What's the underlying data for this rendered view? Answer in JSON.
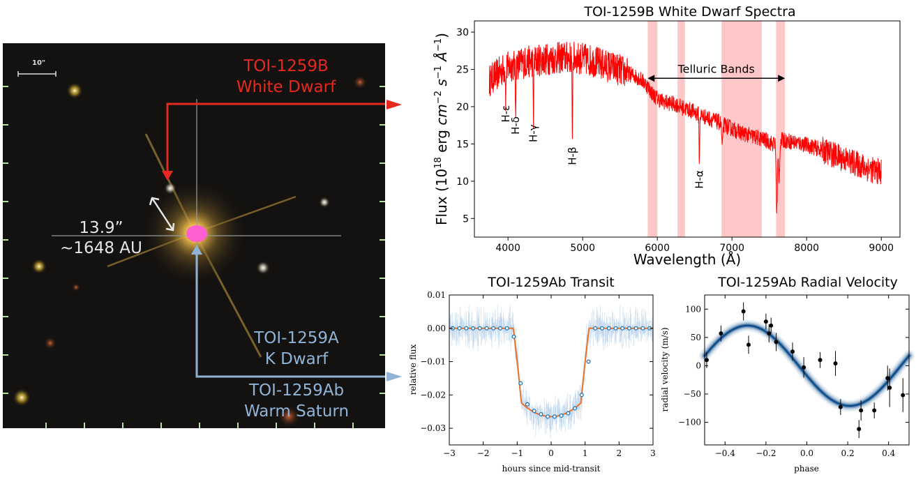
{
  "image_panel": {
    "scale_bar_label": "10\"",
    "wd_name": "TOI-1259B",
    "wd_type": "White Dwarf",
    "k_name": "TOI-1259A",
    "k_type": "K Dwarf",
    "planet_name": "TOI-1259Ab",
    "planet_type": "Warm Saturn",
    "sep_arcsec": "13.9”",
    "sep_au": "~1648 AU",
    "colors": {
      "white_dwarf": "#e8281e",
      "k_dwarf": "#8fb4d8",
      "sky": "#141210"
    }
  },
  "chart_data": [
    {
      "type": "line",
      "title": "TOI-1259B White Dwarf Spectra",
      "xlabel": "Wavelength (Å)",
      "ylabel_parts": [
        "Flux (10",
        "18",
        " erg ",
        "cm",
        "−2",
        " s",
        "−1",
        " Å",
        "−1",
        ")"
      ],
      "xlim": [
        3550,
        9250
      ],
      "ylim": [
        2.5,
        31.5
      ],
      "xticks": [
        "4000",
        "5000",
        "6000",
        "7000",
        "8000",
        "9000"
      ],
      "yticks": [
        "5",
        "10",
        "15",
        "20",
        "25",
        "30"
      ],
      "color": "#ff0000",
      "series": [
        {
          "x": [
            3750,
            3850,
            3950,
            4050,
            4150,
            4250,
            4350,
            4450,
            4550,
            4650,
            4750,
            4850,
            4950,
            5050,
            5150,
            5250,
            5350,
            5450,
            5550,
            5650,
            5750,
            5850,
            5950,
            6050,
            6150,
            6250,
            6350,
            6450,
            6550,
            6650,
            6750,
            6850,
            6950,
            7050,
            7150,
            7250,
            7350,
            7450,
            7550,
            7650,
            7750,
            7850,
            7950,
            8050,
            8150,
            8250,
            8350,
            8450,
            8550,
            8650,
            8750,
            8850,
            8950,
            9000
          ],
          "y": [
            23.5,
            24.3,
            25.1,
            25.5,
            25.8,
            26.0,
            26.1,
            26.3,
            26.4,
            26.5,
            26.6,
            26.6,
            26.5,
            26.3,
            26.1,
            25.7,
            25.4,
            25.1,
            24.7,
            24.3,
            23.9,
            23.0,
            21.5,
            20.8,
            20.5,
            20.3,
            19.8,
            19.5,
            19.0,
            18.6,
            18.2,
            17.8,
            17.3,
            16.8,
            16.4,
            16.1,
            15.8,
            15.5,
            15.0,
            15.5,
            15.4,
            15.2,
            15.0,
            14.7,
            14.4,
            14.0,
            13.6,
            13.2,
            12.8,
            12.4,
            12.0,
            11.6,
            11.3,
            11.2
          ]
        }
      ],
      "absorption_lines": [
        {
          "label": "H-ε",
          "x": 3970,
          "depth": 4.0
        },
        {
          "label": "H-δ",
          "x": 4102,
          "depth": 6.0
        },
        {
          "label": "H-γ",
          "x": 4341,
          "depth": 7.5
        },
        {
          "label": "H-β",
          "x": 4861,
          "depth": 11.0
        },
        {
          "label": "H-α",
          "x": 6563,
          "depth": 6.5
        }
      ],
      "telluric_bands": [
        [
          5870,
          6000
        ],
        [
          6270,
          6370
        ],
        [
          6860,
          7400
        ],
        [
          7590,
          7710
        ]
      ],
      "telluric_label": "Telluric Bands",
      "telluric_arrow": [
        5870,
        7710
      ],
      "band_color": "#ffc8c8"
    },
    {
      "type": "line",
      "title": "TOI-1259Ab Transit",
      "xlabel": "hours since mid-transit",
      "ylabel": "relative flux",
      "xlim": [
        -3,
        3
      ],
      "ylim": [
        -0.035,
        0.01
      ],
      "xticks": [
        "−3",
        "−2",
        "−1",
        "0",
        "1",
        "2",
        "3"
      ],
      "yticks": [
        "0.01",
        "0.00",
        "−0.01",
        "−0.02",
        "−0.03"
      ],
      "model": {
        "depth": 0.0265,
        "t14": 2.23,
        "ingress": 0.24,
        "color": "#e8712a"
      },
      "binned_points": {
        "x": [
          -2.9,
          -2.7,
          -2.5,
          -2.3,
          -2.1,
          -1.9,
          -1.7,
          -1.5,
          -1.3,
          -1.1,
          -0.9,
          -0.7,
          -0.5,
          -0.3,
          -0.1,
          0.1,
          0.3,
          0.5,
          0.7,
          0.9,
          1.1,
          1.3,
          1.5,
          1.7,
          1.9,
          2.1,
          2.3,
          2.5,
          2.7,
          2.9
        ],
        "y": [
          0.0,
          0.0,
          0.0,
          0.0,
          0.0,
          0.0,
          0.0,
          0.0,
          0.0,
          -0.0025,
          -0.0165,
          -0.0228,
          -0.0248,
          -0.0258,
          -0.0265,
          -0.0265,
          -0.0262,
          -0.0255,
          -0.024,
          -0.02,
          -0.01,
          0.0,
          0.0,
          0.0,
          0.0,
          0.0,
          0.0,
          0.0,
          0.0,
          0.0
        ],
        "color": "#1f77b4"
      },
      "scatter_color": "#a9c8e8"
    },
    {
      "type": "scatter",
      "title": "TOI-1259Ab Radial Velocity",
      "xlabel": "phase",
      "ylabel": "radial velocity (m/s)",
      "xlim": [
        -0.5,
        0.5
      ],
      "ylim": [
        -140,
        125
      ],
      "xticks": [
        "−0.4",
        "−0.2",
        "0.0",
        "0.2",
        "0.4"
      ],
      "yticks": [
        "100",
        "50",
        "0",
        "−50",
        "−100"
      ],
      "model": {
        "amplitude": 71,
        "phase_of_max": -0.29,
        "color": "#0b4a8a"
      },
      "points": [
        {
          "x": -0.49,
          "y": 10,
          "err": 14
        },
        {
          "x": -0.42,
          "y": 57,
          "err": 14
        },
        {
          "x": -0.31,
          "y": 96,
          "err": 16
        },
        {
          "x": -0.285,
          "y": 37,
          "err": 16
        },
        {
          "x": -0.2,
          "y": 78,
          "err": 14
        },
        {
          "x": -0.185,
          "y": 57,
          "err": 16
        },
        {
          "x": -0.175,
          "y": 71,
          "err": 14
        },
        {
          "x": -0.15,
          "y": 42,
          "err": 16
        },
        {
          "x": -0.07,
          "y": 25,
          "err": 16
        },
        {
          "x": -0.015,
          "y": -3,
          "err": 18
        },
        {
          "x": 0.065,
          "y": 10,
          "err": 14
        },
        {
          "x": 0.14,
          "y": 4,
          "err": 22
        },
        {
          "x": 0.165,
          "y": -73,
          "err": 14
        },
        {
          "x": 0.255,
          "y": -112,
          "err": 16
        },
        {
          "x": 0.265,
          "y": -79,
          "err": 18
        },
        {
          "x": 0.33,
          "y": -79,
          "err": 14
        },
        {
          "x": 0.395,
          "y": -22,
          "err": 22
        },
        {
          "x": 0.405,
          "y": -39,
          "err": 34
        },
        {
          "x": 0.47,
          "y": -52,
          "err": 30
        }
      ]
    }
  ]
}
